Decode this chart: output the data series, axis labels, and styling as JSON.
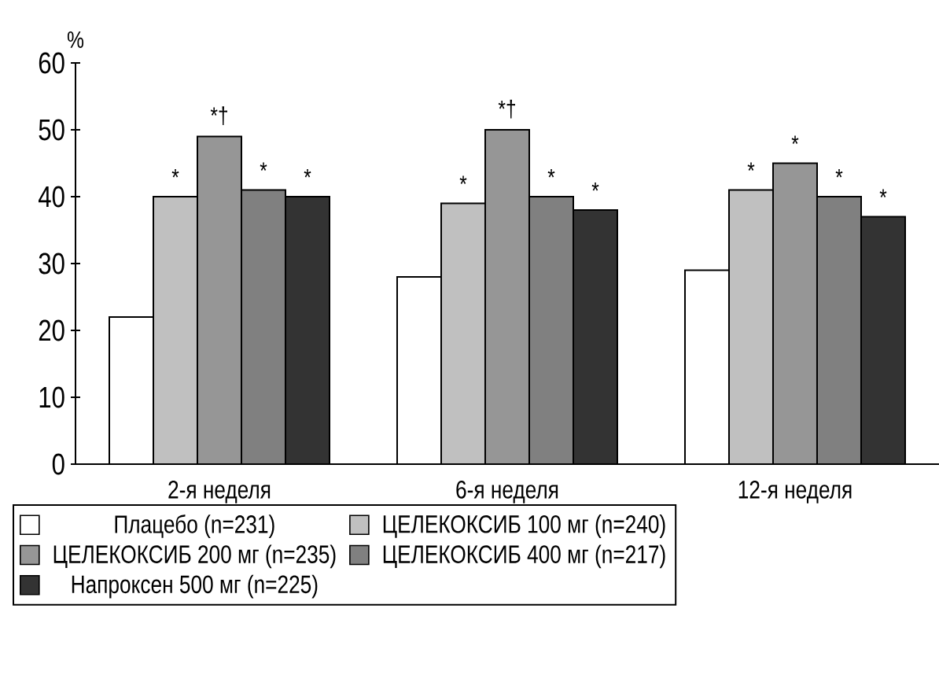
{
  "chart_data": {
    "type": "bar",
    "ylabel": "%",
    "categories": [
      "2-я неделя",
      "6-я неделя",
      "12-я неделя"
    ],
    "series": [
      {
        "name": "Плацебо (n=231)",
        "color": "#ffffff",
        "values": [
          22,
          28,
          29
        ]
      },
      {
        "name": "ЦЕЛЕКОКСИБ 100 мг (n=240)",
        "color": "#c0c0c0",
        "values": [
          40,
          39,
          41
        ],
        "value_labels": [
          "*",
          "*",
          "*"
        ]
      },
      {
        "name": "ЦЕЛЕКОКСИБ 200 мг (n=235)",
        "color": "#969696",
        "values": [
          49,
          50,
          45
        ],
        "value_labels": [
          "*†",
          "*†",
          "*"
        ]
      },
      {
        "name": "ЦЕЛЕКОКСИБ 400 мг (n=217)",
        "color": "#808080",
        "values": [
          41,
          40,
          40
        ],
        "value_labels": [
          "*",
          "*",
          "*"
        ]
      },
      {
        "name": "Напроксен 500 мг (n=225)",
        "color": "#333333",
        "values": [
          40,
          38,
          37
        ],
        "value_labels": [
          "*",
          "*",
          "*"
        ]
      }
    ],
    "ylim": [
      0,
      60
    ],
    "yticks": [
      0,
      10,
      20,
      30,
      40,
      50,
      60
    ],
    "legend": "bottom"
  }
}
